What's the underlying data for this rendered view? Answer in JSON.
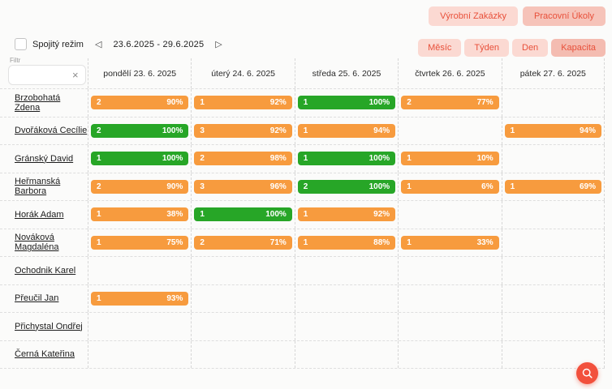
{
  "header": {
    "orders_button": "Výrobní Zakázky",
    "tasks_button": "Pracovní Úkoly"
  },
  "toolbar": {
    "continuous_mode_label": "Spojitý režim",
    "continuous_mode_checked": false,
    "prev_arrow": "◁",
    "next_arrow": "▷",
    "date_range": "23.6.2025 - 29.6.2025",
    "view_tabs": [
      {
        "label": "Měsíc",
        "selected": false
      },
      {
        "label": "Týden",
        "selected": false
      },
      {
        "label": "Den",
        "selected": false
      },
      {
        "label": "Kapacita",
        "selected": true
      }
    ]
  },
  "filter": {
    "label": "Filtr",
    "value": "",
    "clear_icon": "×"
  },
  "days": [
    "pondělí 23. 6. 2025",
    "úterý 24. 6. 2025",
    "středa 25. 6. 2025",
    "čtvrtek 26. 6. 2025",
    "pátek 27. 6. 2025"
  ],
  "rows": [
    {
      "name": "Brzobohatá Zdena",
      "cells": [
        {
          "count": "2",
          "percent": "90%",
          "color": "orange"
        },
        {
          "count": "1",
          "percent": "92%",
          "color": "orange"
        },
        {
          "count": "1",
          "percent": "100%",
          "color": "green"
        },
        {
          "count": "2",
          "percent": "77%",
          "color": "orange"
        },
        null
      ]
    },
    {
      "name": "Dvořáková Cecílie",
      "cells": [
        {
          "count": "2",
          "percent": "100%",
          "color": "green"
        },
        {
          "count": "3",
          "percent": "92%",
          "color": "orange"
        },
        {
          "count": "1",
          "percent": "94%",
          "color": "orange"
        },
        null,
        {
          "count": "1",
          "percent": "94%",
          "color": "orange"
        }
      ]
    },
    {
      "name": "Gránský David",
      "cells": [
        {
          "count": "1",
          "percent": "100%",
          "color": "green"
        },
        {
          "count": "2",
          "percent": "98%",
          "color": "orange"
        },
        {
          "count": "1",
          "percent": "100%",
          "color": "green"
        },
        {
          "count": "1",
          "percent": "10%",
          "color": "orange"
        },
        null
      ]
    },
    {
      "name": "Heřmanská Barbora",
      "cells": [
        {
          "count": "2",
          "percent": "90%",
          "color": "orange"
        },
        {
          "count": "3",
          "percent": "96%",
          "color": "orange"
        },
        {
          "count": "2",
          "percent": "100%",
          "color": "green"
        },
        {
          "count": "1",
          "percent": "6%",
          "color": "orange"
        },
        {
          "count": "1",
          "percent": "69%",
          "color": "orange"
        }
      ]
    },
    {
      "name": "Horák Adam",
      "cells": [
        {
          "count": "1",
          "percent": "38%",
          "color": "orange"
        },
        {
          "count": "1",
          "percent": "100%",
          "color": "green"
        },
        {
          "count": "1",
          "percent": "92%",
          "color": "orange"
        },
        null,
        null
      ]
    },
    {
      "name": "Nováková Magdaléna",
      "cells": [
        {
          "count": "1",
          "percent": "75%",
          "color": "orange"
        },
        {
          "count": "2",
          "percent": "71%",
          "color": "orange"
        },
        {
          "count": "1",
          "percent": "88%",
          "color": "orange"
        },
        {
          "count": "1",
          "percent": "33%",
          "color": "orange"
        },
        null
      ]
    },
    {
      "name": "Ochodnik Karel",
      "cells": [
        null,
        null,
        null,
        null,
        null
      ]
    },
    {
      "name": "Přeučil Jan",
      "cells": [
        {
          "count": "1",
          "percent": "93%",
          "color": "orange"
        },
        null,
        null,
        null,
        null
      ]
    },
    {
      "name": "Přichystal Ondřej",
      "cells": [
        null,
        null,
        null,
        null,
        null
      ]
    },
    {
      "name": "Černá Kateřina",
      "cells": [
        null,
        null,
        null,
        null,
        null
      ]
    }
  ],
  "colors": {
    "accent_red": "#E8503A",
    "pink_bg": "#FBD9D2",
    "pink_selected": "#F4BCB1",
    "bar_orange": "#F79B3E",
    "bar_green": "#27A627",
    "fab_red": "#F2503C"
  }
}
